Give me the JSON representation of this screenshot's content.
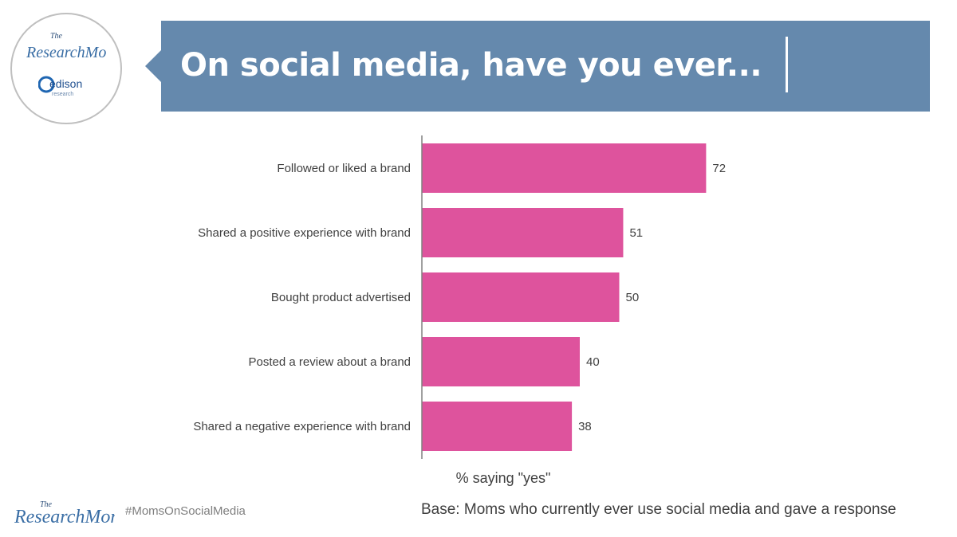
{
  "brand": {
    "logo_text_small": "The",
    "logo_text_main": "ResearchMoms",
    "partner_logo_text": "edison",
    "partner_logo_subtext": "research"
  },
  "header": {
    "title": "On social media, have you ever..."
  },
  "chart_data": {
    "type": "bar",
    "orientation": "horizontal",
    "categories": [
      "Followed or liked a brand",
      "Shared a positive experience with brand",
      "Bought product advertised",
      "Posted a review about a brand",
      "Shared a negative experience with brand"
    ],
    "values": [
      72,
      51,
      50,
      40,
      38
    ],
    "xlabel": "% saying \"yes\"",
    "xlim": [
      0,
      100
    ],
    "grid": false,
    "bar_color": "#de539d"
  },
  "footer": {
    "hashtag": "#MomsOnSocialMedia",
    "base_note": "Base: Moms who currently ever use social media and gave a response"
  },
  "colors": {
    "banner": "#6589ad",
    "bar": "#de539d",
    "text": "#404040"
  }
}
